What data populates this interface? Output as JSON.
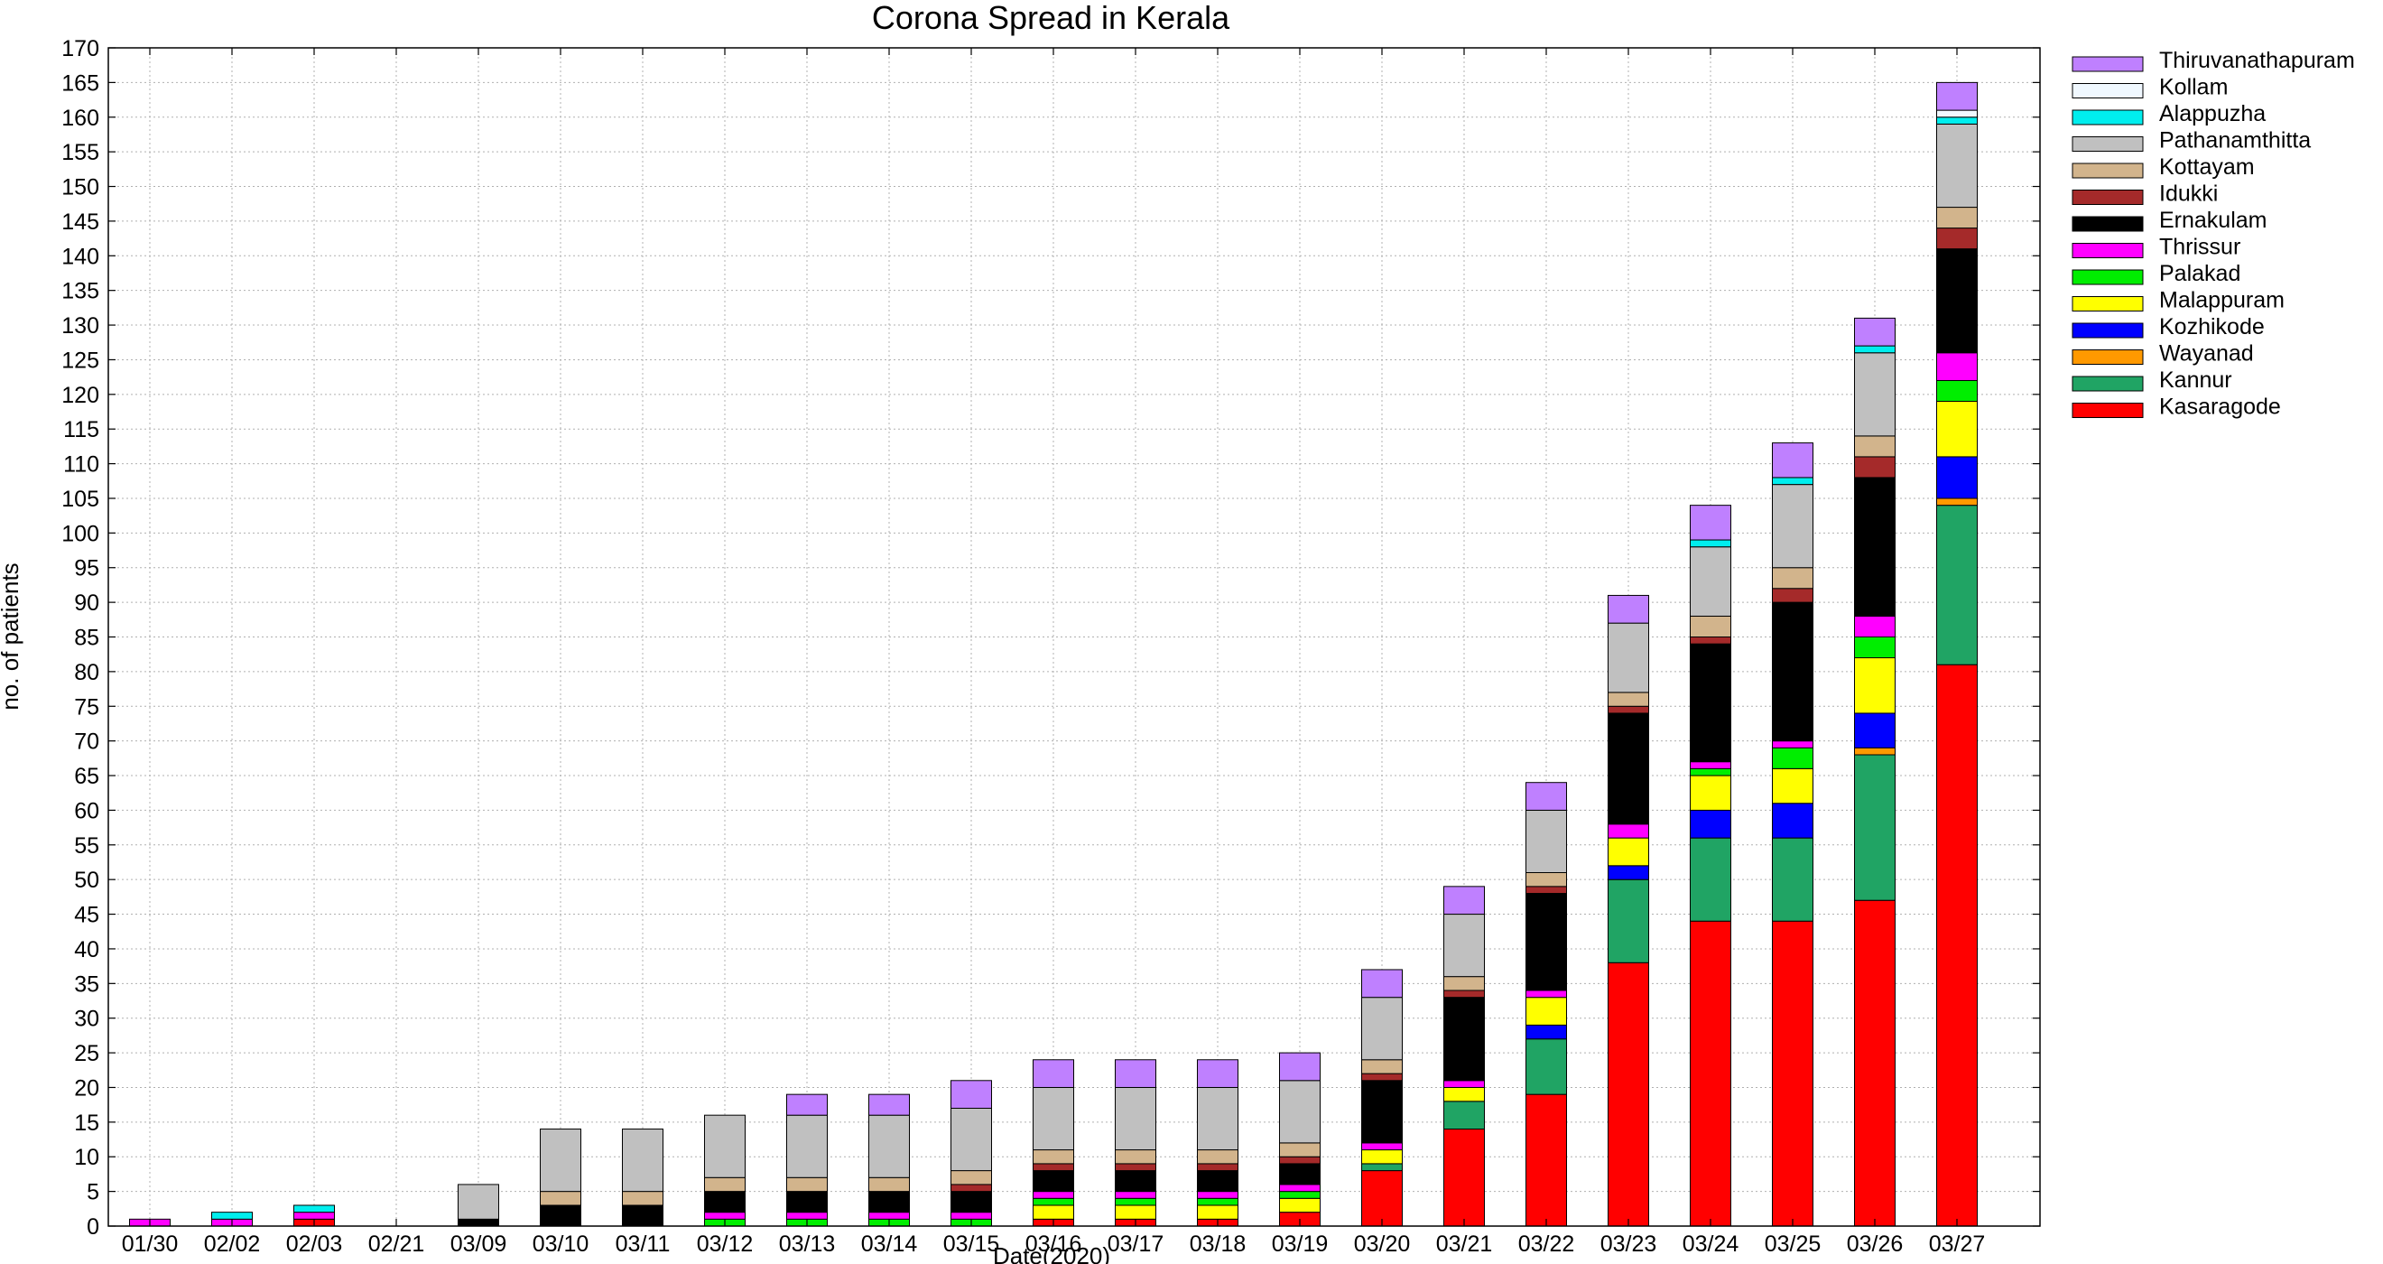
{
  "chart_data": {
    "type": "bar",
    "stacked": true,
    "title": "Corona Spread in Kerala",
    "xlabel": "Date(2020)",
    "ylabel": "no. of patients",
    "ylim": [
      0,
      170
    ],
    "ytick_step": 5,
    "grid": true,
    "legend_position": "right",
    "categories": [
      "01/30",
      "02/02",
      "02/03",
      "02/21",
      "03/09",
      "03/10",
      "03/11",
      "03/12",
      "03/13",
      "03/14",
      "03/15",
      "03/16",
      "03/17",
      "03/18",
      "03/19",
      "03/20",
      "03/21",
      "03/22",
      "03/23",
      "03/24",
      "03/25",
      "03/26",
      "03/27"
    ],
    "series": [
      {
        "name": "Kasaragode",
        "color": "#ff0000",
        "values": [
          0,
          0,
          1,
          0,
          0,
          0,
          0,
          0,
          0,
          0,
          0,
          1,
          1,
          1,
          2,
          8,
          14,
          19,
          38,
          44,
          44,
          47,
          81
        ]
      },
      {
        "name": "Kannur",
        "color": "#20a464",
        "values": [
          0,
          0,
          0,
          0,
          0,
          0,
          0,
          0,
          0,
          0,
          0,
          0,
          0,
          0,
          0,
          1,
          4,
          8,
          12,
          12,
          12,
          21,
          23
        ]
      },
      {
        "name": "Wayanad",
        "color": "#ff9900",
        "values": [
          0,
          0,
          0,
          0,
          0,
          0,
          0,
          0,
          0,
          0,
          0,
          0,
          0,
          0,
          0,
          0,
          0,
          0,
          0,
          0,
          0,
          1,
          1
        ]
      },
      {
        "name": "Kozhikode",
        "color": "#0000ff",
        "values": [
          0,
          0,
          0,
          0,
          0,
          0,
          0,
          0,
          0,
          0,
          0,
          0,
          0,
          0,
          0,
          0,
          0,
          2,
          2,
          4,
          5,
          5,
          6
        ]
      },
      {
        "name": "Malappuram",
        "color": "#ffff00",
        "values": [
          0,
          0,
          0,
          0,
          0,
          0,
          0,
          0,
          0,
          0,
          0,
          2,
          2,
          2,
          2,
          2,
          2,
          4,
          4,
          5,
          5,
          8,
          8
        ]
      },
      {
        "name": "Palakad",
        "color": "#00ee00",
        "values": [
          0,
          0,
          0,
          0,
          0,
          0,
          0,
          1,
          1,
          1,
          1,
          1,
          1,
          1,
          1,
          0,
          0,
          0,
          0,
          1,
          3,
          3,
          3
        ]
      },
      {
        "name": "Thrissur",
        "color": "#ff00ff",
        "values": [
          1,
          1,
          1,
          0,
          0,
          0,
          0,
          1,
          1,
          1,
          1,
          1,
          1,
          1,
          1,
          1,
          1,
          1,
          2,
          1,
          1,
          3,
          4
        ]
      },
      {
        "name": "Ernakulam",
        "color": "#000000",
        "values": [
          0,
          0,
          0,
          0,
          1,
          3,
          3,
          3,
          3,
          3,
          3,
          3,
          3,
          3,
          3,
          9,
          12,
          14,
          16,
          17,
          20,
          20,
          15
        ]
      },
      {
        "name": "Idukki",
        "color": "#a52a2a",
        "values": [
          0,
          0,
          0,
          0,
          0,
          0,
          0,
          0,
          0,
          0,
          1,
          1,
          1,
          1,
          1,
          1,
          1,
          1,
          1,
          1,
          2,
          3,
          3
        ]
      },
      {
        "name": "Kottayam",
        "color": "#d2b48c",
        "values": [
          0,
          0,
          0,
          0,
          0,
          2,
          2,
          2,
          2,
          2,
          2,
          2,
          2,
          2,
          2,
          2,
          2,
          2,
          2,
          3,
          3,
          3,
          3
        ]
      },
      {
        "name": "Pathanamthitta",
        "color": "#c0c0c0",
        "values": [
          0,
          0,
          0,
          0,
          5,
          9,
          9,
          9,
          9,
          9,
          9,
          9,
          9,
          9,
          9,
          9,
          9,
          9,
          10,
          10,
          12,
          12,
          12
        ]
      },
      {
        "name": "Alappuzha",
        "color": "#00eeee",
        "values": [
          0,
          1,
          1,
          0,
          0,
          0,
          0,
          0,
          0,
          0,
          0,
          0,
          0,
          0,
          0,
          0,
          0,
          0,
          0,
          1,
          1,
          1,
          1
        ]
      },
      {
        "name": "Kollam",
        "color": "#f0f8ff",
        "values": [
          0,
          0,
          0,
          0,
          0,
          0,
          0,
          0,
          0,
          0,
          0,
          0,
          0,
          0,
          0,
          0,
          0,
          0,
          0,
          0,
          0,
          0,
          1
        ]
      },
      {
        "name": "Thiruvanathapuram",
        "color": "#bf80ff",
        "values": [
          0,
          0,
          0,
          0,
          0,
          0,
          0,
          0,
          3,
          3,
          4,
          4,
          4,
          4,
          4,
          4,
          4,
          4,
          4,
          5,
          5,
          4,
          4
        ]
      }
    ]
  }
}
